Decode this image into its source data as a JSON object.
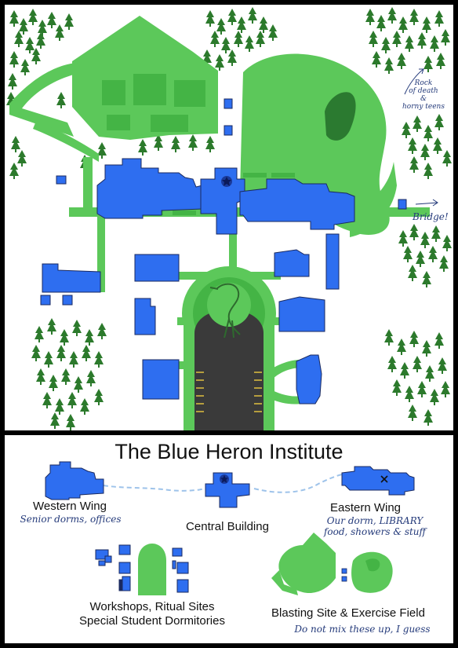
{
  "map": {
    "annotations": {
      "rock_line1": "Rock",
      "rock_line2": "of death",
      "rock_line3": "&",
      "rock_line4": "horny teens",
      "bridge": "Bridge!"
    }
  },
  "legend": {
    "title": "The Blue Heron Institute",
    "western": {
      "name": "Western Wing",
      "note": "Senior dorms, offices"
    },
    "central": {
      "name": "Central Building"
    },
    "eastern": {
      "name": "Eastern Wing",
      "note_line1": "Our dorm, LIBRARY",
      "note_line2": "food, showers & stuff"
    },
    "workshops": {
      "line1": "Workshops, Ritual Sites",
      "line2": "Special Student Dormitories"
    },
    "blasting": {
      "name": "Blasting Site & Exercise Field",
      "note": "Do not mix these up, I guess"
    }
  },
  "colors": {
    "grass": "#5cc85a",
    "grass_dark": "#44b445",
    "building": "#2e6ef0",
    "tree": "#2c7a2c",
    "parking": "#3a3a3a",
    "path_dashed": "#9ec3ea",
    "ink": "#243a7a"
  },
  "icons": [
    "tree-icon",
    "heron-icon",
    "star-emblem-icon",
    "x-marker-icon",
    "arrow-icon"
  ]
}
